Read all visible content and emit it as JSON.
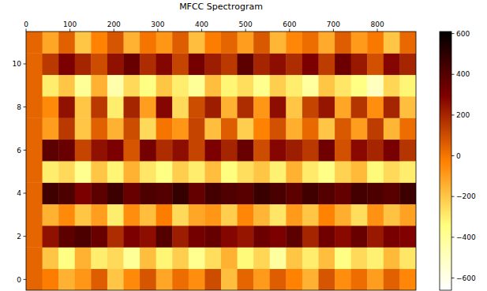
{
  "chart_data": {
    "type": "heatmap",
    "title": "MFCC Spectrogram",
    "x_bins": [
      0,
      37,
      74,
      111,
      148,
      185,
      222,
      259,
      296,
      333,
      370,
      407,
      444,
      481,
      518,
      555,
      592,
      629,
      666,
      703,
      740,
      777,
      814,
      851,
      888
    ],
    "y": [
      0,
      1,
      2,
      3,
      4,
      5,
      6,
      7,
      8,
      9,
      10,
      11
    ],
    "cells": [
      [
        40,
        -20,
        -150,
        -80,
        60,
        -200,
        -50,
        80,
        -120,
        20,
        -60,
        100,
        -180,
        40,
        -90,
        60,
        -30,
        -150,
        80,
        -60,
        20,
        -100,
        50,
        -40
      ],
      [
        40,
        -200,
        -350,
        -150,
        -300,
        -250,
        -400,
        -180,
        -320,
        -220,
        -380,
        -260,
        -150,
        -330,
        -240,
        -420,
        -200,
        -300,
        -180,
        -350,
        -250,
        -310,
        -170,
        -280
      ],
      [
        40,
        250,
        380,
        420,
        350,
        180,
        300,
        260,
        400,
        220,
        320,
        360,
        280,
        240,
        340,
        300,
        380,
        200,
        330,
        270,
        350,
        230,
        310,
        290
      ],
      [
        40,
        -150,
        -50,
        -200,
        -100,
        -300,
        -60,
        -180,
        -20,
        -250,
        -120,
        -80,
        -220,
        -40,
        -160,
        -280,
        -90,
        -200,
        -30,
        -140,
        -260,
        -70,
        -190,
        -110
      ],
      [
        40,
        450,
        420,
        300,
        380,
        460,
        350,
        420,
        400,
        480,
        360,
        440,
        410,
        390,
        470,
        430,
        380,
        450,
        400,
        360,
        440,
        420,
        390,
        460
      ],
      [
        40,
        -300,
        -250,
        -380,
        -200,
        -320,
        -150,
        -280,
        -350,
        -220,
        -300,
        -180,
        -340,
        -260,
        -200,
        -310,
        -150,
        -290,
        -360,
        -230,
        -170,
        -330,
        -250,
        -300
      ],
      [
        40,
        380,
        350,
        120,
        250,
        300,
        80,
        320,
        180,
        260,
        120,
        300,
        200,
        350,
        100,
        280,
        220,
        150,
        330,
        90,
        270,
        200,
        310,
        160
      ],
      [
        40,
        -100,
        150,
        -200,
        50,
        -150,
        100,
        -250,
        0,
        -80,
        120,
        -180,
        60,
        -220,
        -30,
        90,
        -140,
        30,
        -200,
        70,
        -100,
        140,
        -160,
        20
      ],
      [
        40,
        -50,
        250,
        -200,
        150,
        -300,
        200,
        -100,
        280,
        -250,
        100,
        220,
        -150,
        180,
        -80,
        260,
        -200,
        120,
        240,
        -120,
        160,
        -60,
        200,
        -180
      ],
      [
        40,
        -300,
        -200,
        -400,
        -150,
        -450,
        -250,
        -350,
        -200,
        -300,
        -400,
        -180,
        -320,
        -260,
        -380,
        -220,
        -300,
        -420,
        -200,
        -280,
        -350,
        -500,
        -240,
        -320
      ],
      [
        40,
        150,
        300,
        200,
        100,
        250,
        350,
        180,
        280,
        120,
        320,
        220,
        150,
        380,
        200,
        260,
        180,
        300,
        140,
        340,
        230,
        90,
        280,
        200
      ],
      [
        40,
        -120,
        50,
        -200,
        -30,
        80,
        -150,
        0,
        -80,
        60,
        -180,
        -20,
        40,
        -100,
        70,
        -160,
        -40,
        20,
        -130,
        60,
        -90,
        -10,
        -200,
        30
      ]
    ],
    "xlim": [
      0,
      888
    ],
    "ylim": [
      -0.5,
      11.5
    ],
    "xticks": [
      0,
      100,
      200,
      300,
      400,
      500,
      600,
      700,
      800
    ],
    "yticks": [
      0,
      2,
      4,
      6,
      8,
      10
    ],
    "colorbar": {
      "range": [
        -660,
        610
      ],
      "ticks": [
        {
          "value": -600,
          "label": "−600"
        },
        {
          "value": -400,
          "label": "−400"
        },
        {
          "value": -200,
          "label": "−200"
        },
        0,
        200,
        400,
        600
      ]
    }
  }
}
